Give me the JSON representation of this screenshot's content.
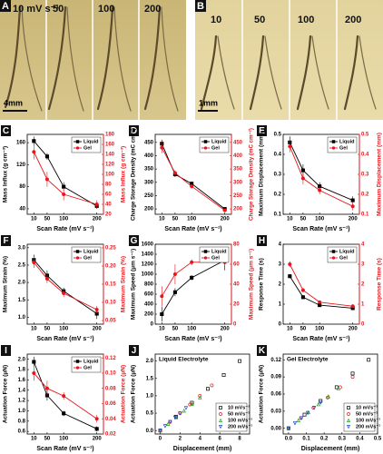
{
  "photos": [
    {
      "panel": "A",
      "labels": [
        "10 mV s⁻¹",
        "50",
        "100",
        "200"
      ],
      "scale": "4mm"
    },
    {
      "panel": "B",
      "labels": [
        "10",
        "50",
        "100",
        "200"
      ],
      "scale": "1mm"
    }
  ],
  "chart_data": [
    {
      "type": "line",
      "panel": "C",
      "x": [
        10,
        50,
        100,
        200
      ],
      "xlim": [
        -10,
        220
      ],
      "xticks": [
        10,
        50,
        100,
        200
      ],
      "xlabel": "Scan Rate (mV s⁻¹)",
      "ylabel": "Mass Influx (g cm⁻³)",
      "y2label": "Mass Influx (g cm⁻³)",
      "ylim": [
        30,
        175
      ],
      "yticks": [
        40,
        80,
        120,
        160
      ],
      "y2lim": [
        20,
        180
      ],
      "y2ticks": [
        20,
        40,
        60,
        80,
        100,
        120,
        140,
        160,
        180
      ],
      "legend": "upper right",
      "series": [
        {
          "name": "Liquid",
          "color": "#000000",
          "marker": "square",
          "values": [
            163,
            135,
            80,
            45
          ],
          "errors": [
            8,
            6,
            8,
            5
          ]
        },
        {
          "name": "Gel",
          "color": "#e8151b",
          "marker": "circle",
          "axis": "y2",
          "values": [
            145,
            90,
            60,
            40
          ],
          "errors": [
            15,
            15,
            12,
            8
          ]
        }
      ]
    },
    {
      "type": "line",
      "panel": "D",
      "x": [
        10,
        50,
        100,
        200
      ],
      "xlim": [
        -10,
        220
      ],
      "xticks": [
        10,
        50,
        100,
        200
      ],
      "xlabel": "Scan Rate (mV s⁻¹)",
      "ylabel": "Charge Storage Density (mC cm⁻²)",
      "y2label": "Charge Storage Density (mC cm⁻²)",
      "ylim": [
        180,
        480
      ],
      "yticks": [
        200,
        250,
        300,
        350,
        400,
        450
      ],
      "y2lim": [
        180,
        480
      ],
      "y2ticks": [
        200,
        250,
        300,
        350,
        400,
        450
      ],
      "legend": "upper right",
      "series": [
        {
          "name": "Liquid",
          "color": "#000000",
          "marker": "square",
          "values": [
            445,
            330,
            295,
            200
          ],
          "errors": [
            15,
            10,
            8,
            5
          ]
        },
        {
          "name": "Gel",
          "color": "#e8151b",
          "marker": "circle",
          "axis": "y2",
          "values": [
            430,
            335,
            285,
            195
          ],
          "errors": [
            20,
            10,
            8,
            5
          ]
        }
      ]
    },
    {
      "type": "line",
      "panel": "E",
      "x": [
        10,
        50,
        100,
        200
      ],
      "xlim": [
        -10,
        220
      ],
      "xticks": [
        10,
        50,
        100,
        200
      ],
      "xlabel": "Scan Rate (mV s⁻¹)",
      "ylabel": "Maximum Displacement (mm)",
      "y2label": "Maximum Displacement (mm)",
      "ylim": [
        0.1,
        0.5
      ],
      "yticks": [
        0.1,
        0.2,
        0.3,
        0.4,
        0.5
      ],
      "y2lim": [
        0.1,
        0.5
      ],
      "y2ticks": [
        0.1,
        0.2,
        0.3,
        0.4,
        0.5
      ],
      "legend": "upper right",
      "series": [
        {
          "name": "Liquid",
          "color": "#000000",
          "marker": "square",
          "values": [
            0.46,
            0.32,
            0.24,
            0.17
          ],
          "errors": [
            0.03,
            0.03,
            0.02,
            0.02
          ]
        },
        {
          "name": "Gel",
          "color": "#e8151b",
          "marker": "circle",
          "axis": "y2",
          "values": [
            0.44,
            0.28,
            0.22,
            0.14
          ],
          "errors": [
            0.03,
            0.03,
            0.02,
            0.02
          ]
        }
      ]
    },
    {
      "type": "line",
      "panel": "F",
      "x": [
        10,
        50,
        100,
        200
      ],
      "xlim": [
        -10,
        220
      ],
      "xticks": [
        10,
        50,
        100,
        200
      ],
      "xlabel": "Scan Rate (mV s⁻¹)",
      "ylabel": "Maximum Strain (%)",
      "y2label": "Maximum Strain (%)",
      "ylim": [
        0.8,
        3.1
      ],
      "yticks": [
        {
          "value": 1,
          "label": "1.0"
        },
        {
          "value": 1.5,
          "label": "1.5"
        },
        {
          "value": 2,
          "label": "2.0"
        },
        {
          "value": 2.5,
          "label": "2.5"
        },
        {
          "value": 3,
          "label": "3.0"
        }
      ],
      "y2lim": [
        0.04,
        0.26
      ],
      "y2ticks": [
        {
          "value": 0.05,
          "label": "0.05"
        },
        {
          "value": 0.1,
          "label": "0.10"
        },
        {
          "value": 0.15,
          "label": "0.15"
        },
        {
          "value": 0.2,
          "label": "0.20"
        },
        {
          "value": 0.25,
          "label": "0.25"
        }
      ],
      "legend": "upper right",
      "series": [
        {
          "name": "Liquid",
          "color": "#000000",
          "marker": "square",
          "values": [
            2.65,
            2.2,
            1.75,
            1.1
          ],
          "errors": [
            0.15,
            0.15,
            0.1,
            0.15
          ]
        },
        {
          "name": "Gel",
          "color": "#e8151b",
          "marker": "circle",
          "axis": "y2",
          "values": [
            0.21,
            0.165,
            0.125,
            0.08
          ],
          "errors": [
            0.015,
            0.012,
            0.01,
            0.01
          ]
        }
      ]
    },
    {
      "type": "line",
      "panel": "G",
      "x": [
        10,
        50,
        100,
        200
      ],
      "xlim": [
        -10,
        220
      ],
      "xticks": [
        10,
        50,
        100,
        200
      ],
      "xlabel": "Scan Rate (mV s⁻¹)",
      "ylabel": "Maximum Speed (μm s⁻¹)",
      "y2label": "Maximum Speed (μm s⁻¹)",
      "ylim": [
        0,
        1600
      ],
      "yticks": [
        0,
        200,
        400,
        600,
        800,
        1000,
        1200,
        1400,
        1600
      ],
      "y2lim": [
        0,
        80
      ],
      "y2ticks": [
        0,
        20,
        40,
        60,
        80
      ],
      "legend": "upper right",
      "series": [
        {
          "name": "Liquid",
          "color": "#000000",
          "marker": "square",
          "values": [
            200,
            640,
            930,
            1280
          ],
          "errors": [
            150,
            80,
            50,
            200
          ]
        },
        {
          "name": "Gel",
          "color": "#e8151b",
          "marker": "circle",
          "axis": "y2",
          "values": [
            28,
            50,
            62,
            62
          ],
          "errors": [
            10,
            10,
            3,
            3
          ]
        }
      ]
    },
    {
      "type": "line",
      "panel": "H",
      "x": [
        10,
        50,
        100,
        200
      ],
      "xlim": [
        -10,
        220
      ],
      "xticks": [
        10,
        50,
        100,
        200
      ],
      "xlabel": "Scan Rate (mV s⁻¹)",
      "ylabel": "Response Time (s)",
      "y2label": "Response Time (s)",
      "ylim": [
        0,
        4
      ],
      "yticks": [
        0,
        1,
        2,
        3,
        4
      ],
      "y2lim": [
        0,
        4
      ],
      "y2ticks": [
        0,
        1,
        2,
        3,
        4
      ],
      "legend": "upper right",
      "series": [
        {
          "name": "Liquid",
          "color": "#000000",
          "marker": "square",
          "values": [
            2.4,
            1.35,
            0.95,
            0.8
          ],
          "errors": [
            0.1,
            0.1,
            0.05,
            0.05
          ]
        },
        {
          "name": "Gel",
          "color": "#e8151b",
          "marker": "circle",
          "axis": "y2",
          "values": [
            3.0,
            1.7,
            1.1,
            0.9
          ],
          "errors": [
            0.15,
            0.1,
            0.05,
            0.05
          ]
        }
      ]
    },
    {
      "type": "line",
      "panel": "I",
      "x": [
        10,
        50,
        100,
        200
      ],
      "xlim": [
        -10,
        220
      ],
      "xticks": [
        10,
        50,
        100,
        200
      ],
      "xlabel": "Scan Rate (mV s⁻¹)",
      "ylabel": "Actuation Force (μN)",
      "y2label": "Actuation Force (μN)",
      "ylim": [
        0.55,
        2.1
      ],
      "yticks": [
        {
          "value": 0.6,
          "label": "0.6"
        },
        {
          "value": 0.8,
          "label": "0.8"
        },
        {
          "value": 1,
          "label": "1.0"
        },
        {
          "value": 1.2,
          "label": "1.2"
        },
        {
          "value": 1.4,
          "label": "1.4"
        },
        {
          "value": 1.6,
          "label": "1.6"
        },
        {
          "value": 1.8,
          "label": "1.8"
        },
        {
          "value": 2,
          "label": "2.0"
        }
      ],
      "y2lim": [
        0.02,
        0.125
      ],
      "y2ticks": [
        {
          "value": 0.02,
          "label": "0.02"
        },
        {
          "value": 0.04,
          "label": "0.04"
        },
        {
          "value": 0.06,
          "label": "0.06"
        },
        {
          "value": 0.08,
          "label": "0.08"
        },
        {
          "value": 0.1,
          "label": "0.10"
        },
        {
          "value": 0.12,
          "label": "0.12"
        }
      ],
      "legend": "upper right",
      "series": [
        {
          "name": "Liquid",
          "color": "#000000",
          "marker": "square",
          "values": [
            1.95,
            1.3,
            0.95,
            0.65
          ],
          "errors": [
            0.1,
            0.1,
            0.05,
            0.05
          ]
        },
        {
          "name": "Gel",
          "color": "#e8151b",
          "marker": "circle",
          "axis": "y2",
          "values": [
            0.1,
            0.08,
            0.07,
            0.04
          ],
          "errors": [
            0.01,
            0.01,
            0.005,
            0.005
          ]
        }
      ]
    },
    {
      "type": "scatter",
      "panel": "J",
      "title": "Liquid Electrolyte",
      "xlabel": "Displacement (mm)",
      "ylabel": "Actuation Force (μN)",
      "xlim": [
        -0.5,
        9
      ],
      "xticks": [
        0,
        2,
        4,
        6,
        8
      ],
      "ylim": [
        -0.1,
        2.2
      ],
      "yticks": [
        {
          "value": 0,
          "label": "0.0"
        },
        {
          "value": 0.5,
          "label": "0.5"
        },
        {
          "value": 1,
          "label": "1.0"
        },
        {
          "value": 1.5,
          "label": "1.5"
        },
        {
          "value": 2,
          "label": "2.0"
        }
      ],
      "legend": "lower right",
      "open_markers": true,
      "series": [
        {
          "name": "10 mVs⁻¹",
          "color": "#000000",
          "marker": "square",
          "x": [
            0,
            1.6,
            3.2,
            4.8,
            6.4,
            8.0
          ],
          "values": [
            0,
            0.4,
            0.8,
            1.2,
            1.6,
            2.0
          ]
        },
        {
          "name": "50 mVs⁻¹",
          "color": "#e8151b",
          "marker": "circle",
          "x": [
            0,
            1,
            2,
            3,
            4,
            5.2
          ],
          "values": [
            0,
            0.25,
            0.5,
            0.75,
            1.0,
            1.3
          ]
        },
        {
          "name": "100 mVs⁻¹",
          "color": "#1aa01a",
          "marker": "triangle",
          "x": [
            0,
            0.8,
            1.6,
            2.4,
            3.2,
            4.0
          ],
          "values": [
            0,
            0.19,
            0.38,
            0.57,
            0.76,
            0.95
          ]
        },
        {
          "name": "200 mVs⁻¹",
          "color": "#1a3fd0",
          "marker": "triangle-down",
          "x": [
            0,
            0.5,
            1,
            1.5,
            2,
            2.6
          ],
          "values": [
            0,
            0.13,
            0.25,
            0.38,
            0.5,
            0.65
          ]
        }
      ]
    },
    {
      "type": "scatter",
      "panel": "K",
      "title": "Gel Electrolyte",
      "xlabel": "Displacement (mm)",
      "ylabel": "Actuation Force (μN)",
      "xlim": [
        -0.03,
        0.5
      ],
      "xticks": [
        {
          "value": 0,
          "label": "0.0"
        },
        0.1,
        0.2,
        0.3,
        0.4,
        0.5
      ],
      "ylim": [
        -0.01,
        0.13
      ],
      "yticks": [
        {
          "value": 0,
          "label": "0.00"
        },
        0.03,
        0.06,
        0.09,
        0.12
      ],
      "legend": "lower right",
      "open_markers": true,
      "series": [
        {
          "name": "10 mVs⁻¹",
          "color": "#000000",
          "marker": "square",
          "x": [
            0,
            0.09,
            0.18,
            0.27,
            0.36,
            0.45
          ],
          "values": [
            0,
            0.024,
            0.048,
            0.072,
            0.096,
            0.12
          ]
        },
        {
          "name": "50 mVs⁻¹",
          "color": "#e8151b",
          "marker": "circle",
          "x": [
            0,
            0.07,
            0.14,
            0.22,
            0.29,
            0.36
          ],
          "values": [
            0,
            0.018,
            0.036,
            0.054,
            0.072,
            0.09
          ]
        },
        {
          "name": "100 mVs⁻¹",
          "color": "#1aa01a",
          "marker": "triangle",
          "x": [
            0,
            0.056,
            0.112,
            0.168,
            0.224,
            0.28
          ],
          "values": [
            0,
            0.014,
            0.028,
            0.042,
            0.056,
            0.07
          ]
        },
        {
          "name": "200 mVs⁻¹",
          "color": "#1a3fd0",
          "marker": "triangle-down",
          "x": [
            0,
            0.036,
            0.072,
            0.108,
            0.144,
            0.18
          ],
          "values": [
            0,
            0.009,
            0.018,
            0.027,
            0.036,
            0.045
          ]
        }
      ]
    }
  ]
}
